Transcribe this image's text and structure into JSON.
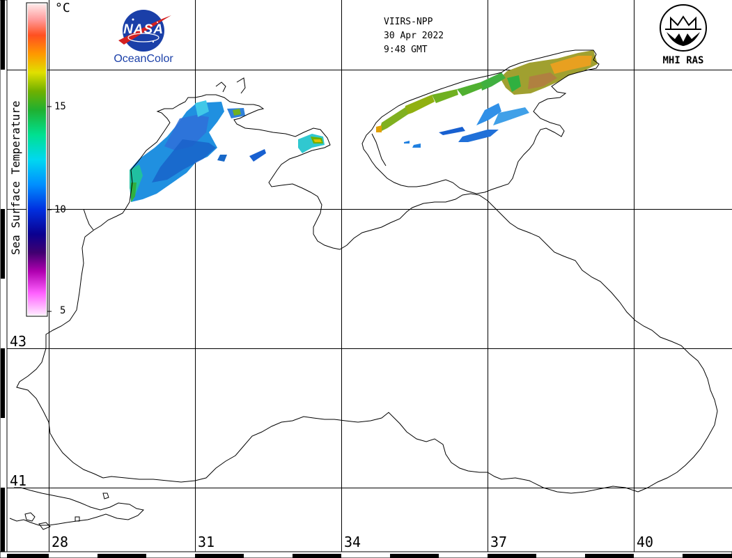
{
  "header": {
    "satellite": "VIIRS-NPP",
    "date": "30 Apr 2022",
    "time": "9:48 GMT"
  },
  "logos": {
    "nasa_text": "NASA",
    "oceancolor_text": "OceanColor",
    "mhi_text": "MHI RAS"
  },
  "colorbar": {
    "title": "Sea Surface Temperature",
    "unit": "°C",
    "ticks": [
      "15",
      "10",
      "5"
    ],
    "min": 4,
    "max": 19,
    "colors": [
      "#ffe4ff",
      "#ff66ff",
      "#c000c0",
      "#60007a",
      "#180070",
      "#0010c0",
      "#0050ff",
      "#00a8ff",
      "#00e8e8",
      "#00e080",
      "#20b020",
      "#70b000",
      "#d8d800",
      "#ffa000",
      "#ff5010",
      "#ff9090",
      "#ffe0e0"
    ]
  },
  "grid": {
    "lon_labels": [
      "28",
      "31",
      "34",
      "37",
      "40"
    ],
    "lat_labels": [
      "43",
      "41"
    ]
  }
}
